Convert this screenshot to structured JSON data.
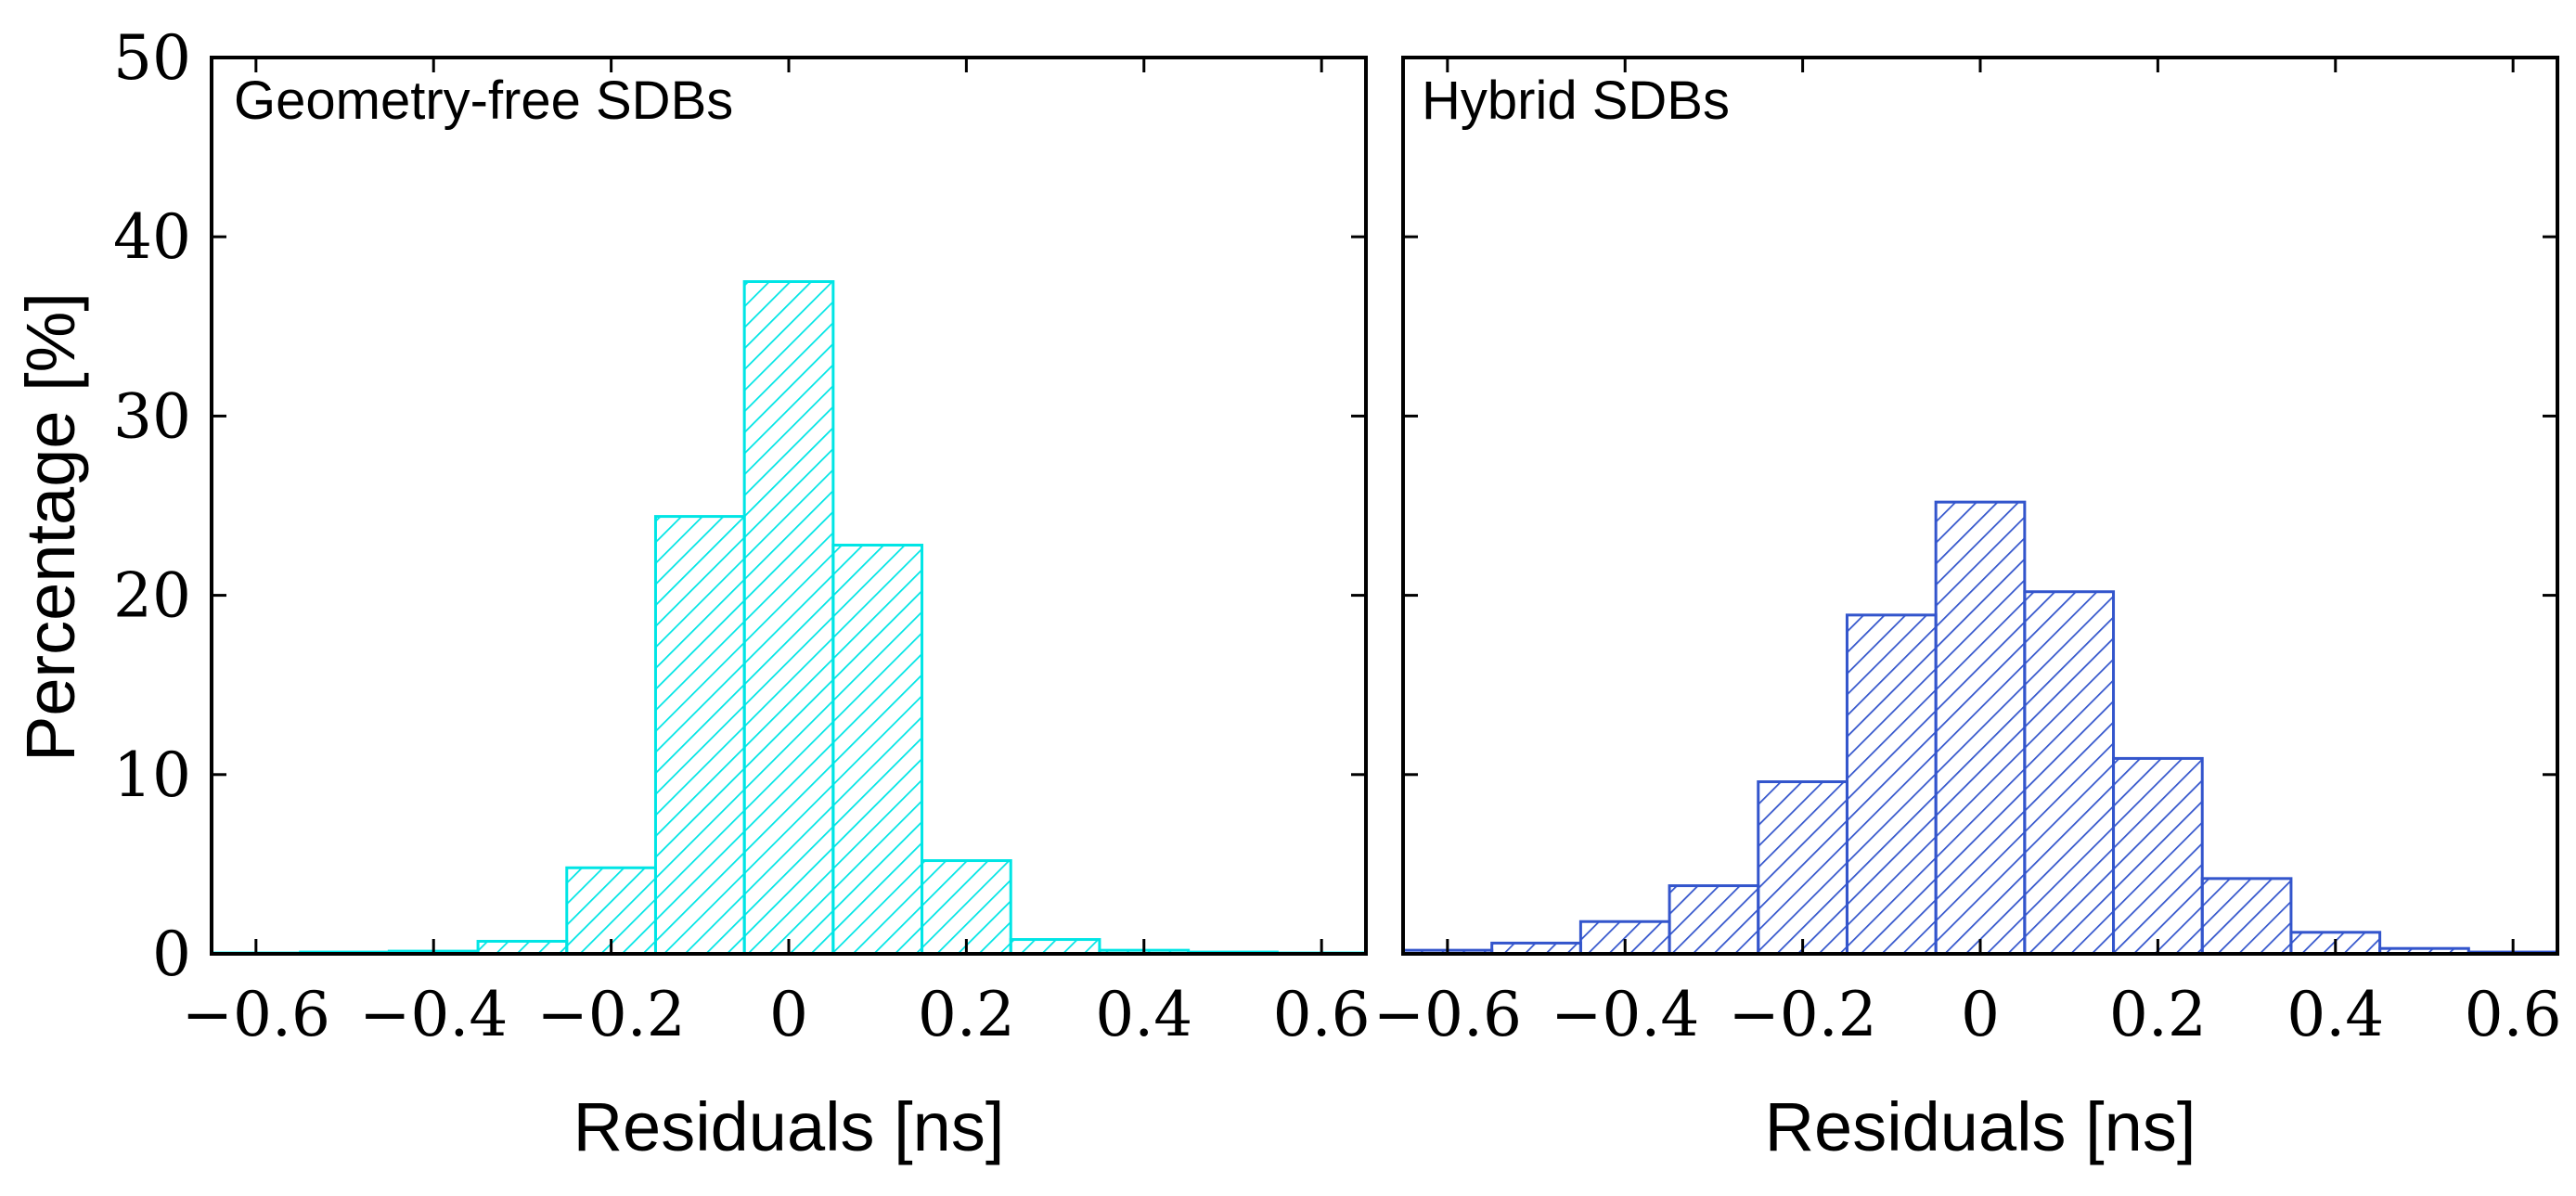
{
  "y_axis_label": "Percentage [%]",
  "chart_data": [
    {
      "type": "bar",
      "title": "Geometry-free SDBs",
      "xlabel": "Residuals [ns]",
      "ylabel": "Percentage [%]",
      "xlim": [
        -0.65,
        0.65
      ],
      "ylim": [
        0,
        50
      ],
      "bin_width": 0.1,
      "color": "#00e5e5",
      "bin_centers": [
        -0.6,
        -0.5,
        -0.4,
        -0.3,
        -0.2,
        -0.1,
        0.0,
        0.1,
        0.2,
        0.3,
        0.4,
        0.5,
        0.6
      ],
      "values": [
        0.05,
        0.1,
        0.15,
        0.7,
        4.8,
        24.4,
        37.5,
        22.8,
        5.2,
        0.8,
        0.2,
        0.1,
        0.05
      ],
      "xticks": [
        -0.6,
        -0.4,
        -0.2,
        0,
        0.2,
        0.4,
        0.6
      ],
      "xtick_labels": [
        "−0.6",
        "−0.4",
        "−0.2",
        "0",
        "0.2",
        "0.4",
        "0.6"
      ],
      "yticks": [
        0,
        10,
        20,
        30,
        40,
        50
      ],
      "ytick_labels": [
        "0",
        "10",
        "20",
        "30",
        "40",
        "50"
      ]
    },
    {
      "type": "bar",
      "title": "Hybrid SDBs",
      "xlabel": "Residuals [ns]",
      "ylabel": "",
      "xlim": [
        -0.65,
        0.65
      ],
      "ylim": [
        0,
        50
      ],
      "bin_width": 0.1,
      "color": "#3355cc",
      "bin_centers": [
        -0.6,
        -0.5,
        -0.4,
        -0.3,
        -0.2,
        -0.1,
        0.0,
        0.1,
        0.2,
        0.3,
        0.4,
        0.5,
        0.6
      ],
      "values": [
        0.2,
        0.6,
        1.8,
        3.8,
        9.6,
        18.9,
        25.2,
        20.2,
        10.9,
        4.2,
        1.2,
        0.3,
        0.1
      ],
      "xticks": [
        -0.6,
        -0.4,
        -0.2,
        0,
        0.2,
        0.4,
        0.6
      ],
      "xtick_labels": [
        "−0.6",
        "−0.4",
        "−0.2",
        "0",
        "0.2",
        "0.4",
        "0.6"
      ],
      "yticks": [
        0,
        10,
        20,
        30,
        40,
        50
      ],
      "ytick_labels": [
        "0",
        "10",
        "20",
        "30",
        "40",
        "50"
      ]
    }
  ]
}
